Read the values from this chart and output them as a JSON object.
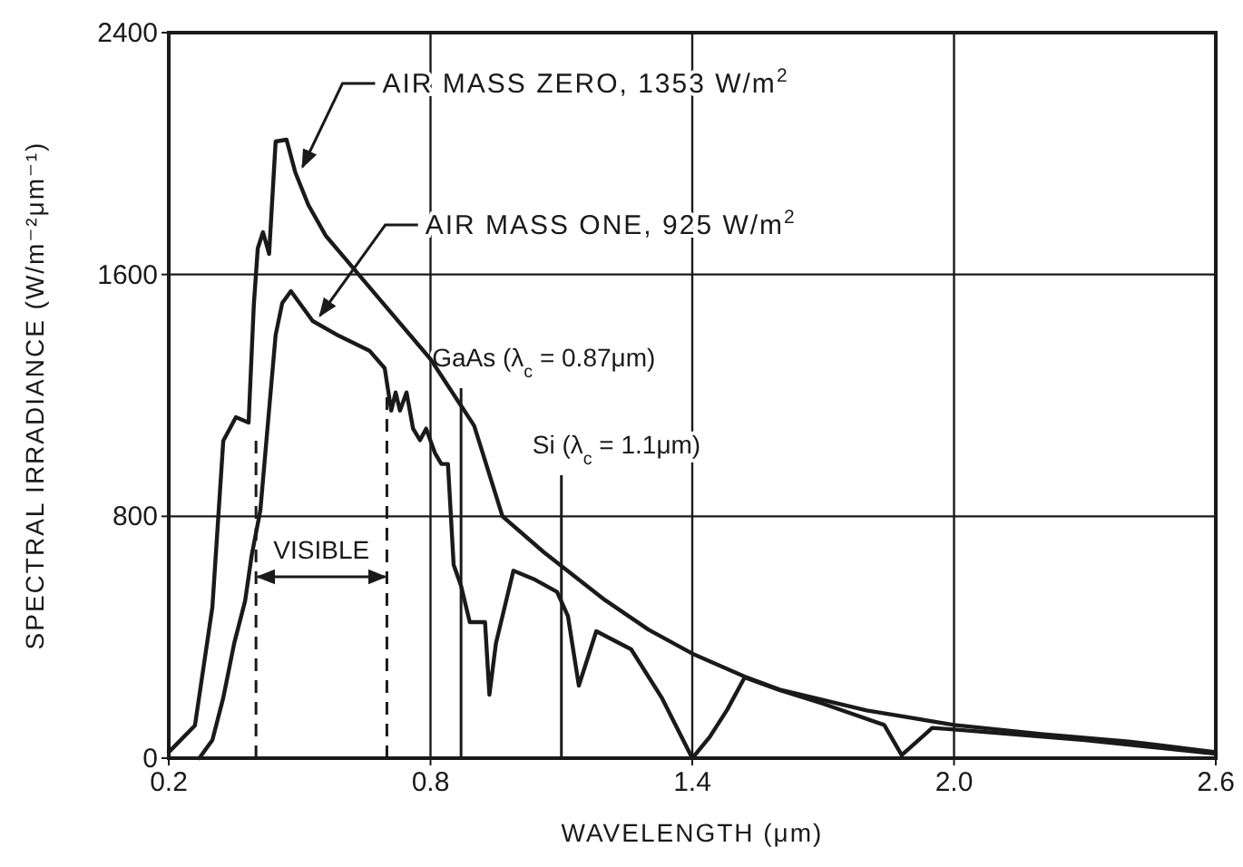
{
  "chart_data": {
    "type": "line",
    "xlabel": "WAVELENGTH (μm)",
    "ylabel": "SPECTRAL IRRADIANCE (W/m⁻²μm⁻¹)",
    "xlim": [
      0.2,
      2.6
    ],
    "xticks": [
      {
        "value": 0.2,
        "label": "0.2"
      },
      {
        "value": 0.8,
        "label": "0.8"
      },
      {
        "value": 1.4,
        "label": "1.4"
      },
      {
        "value": 2.0,
        "label": "2.0"
      },
      {
        "value": 2.6,
        "label": "2.6"
      }
    ],
    "ylim": [
      0,
      2400
    ],
    "yticks": [
      0,
      800,
      1600,
      2400
    ],
    "grid": true,
    "marker": "none",
    "line_style": "solid",
    "series": [
      {
        "color": "#1a1a1a",
        "x": [
          0.2,
          0.26,
          0.3,
          0.325,
          0.354,
          0.383,
          0.395,
          0.404,
          0.416,
          0.43,
          0.445,
          0.47,
          0.49,
          0.52,
          0.56,
          0.6,
          0.7,
          0.8,
          0.9,
          0.965,
          1.06,
          1.2,
          1.3,
          1.4,
          1.52,
          1.6,
          1.8,
          2.0,
          2.2,
          2.4,
          2.6
        ],
        "values": [
          20,
          108,
          500,
          1050,
          1128,
          1110,
          1500,
          1686,
          1740,
          1668,
          2040,
          2046,
          1938,
          1830,
          1728,
          1660,
          1490,
          1320,
          1100,
          800,
          681,
          523,
          425,
          346,
          270,
          227,
          158,
          110,
          80,
          55,
          20
        ]
      },
      {
        "color": "#1a1a1a",
        "x": [
          0.27,
          0.3,
          0.325,
          0.35,
          0.375,
          0.39,
          0.41,
          0.425,
          0.445,
          0.46,
          0.48,
          0.5,
          0.53,
          0.59,
          0.66,
          0.695,
          0.71,
          0.72,
          0.73,
          0.745,
          0.76,
          0.776,
          0.79,
          0.81,
          0.825,
          0.84,
          0.853,
          0.87,
          0.89,
          0.925,
          0.935,
          0.95,
          0.99,
          1.04,
          1.09,
          1.115,
          1.14,
          1.18,
          1.26,
          1.33,
          1.4,
          1.44,
          1.48,
          1.52,
          1.6,
          1.7,
          1.84,
          1.88,
          1.95,
          2.0,
          2.3,
          2.6
        ],
        "values": [
          0,
          60,
          200,
          380,
          520,
          670,
          820,
          1070,
          1400,
          1505,
          1545,
          1505,
          1446,
          1397,
          1348,
          1290,
          1150,
          1210,
          1150,
          1210,
          1090,
          1052,
          1090,
          1010,
          973,
          973,
          640,
          570,
          450,
          450,
          210,
          380,
          620,
          590,
          550,
          470,
          240,
          420,
          360,
          200,
          0,
          70,
          160,
          267,
          225,
          180,
          110,
          10,
          100,
          95,
          60,
          15
        ]
      }
    ],
    "annotations": [
      {
        "text": "AIR MASS ZERO, 1353 W/m$^{2}$",
        "x": 0.49,
        "y": 1938
      },
      {
        "text": "AIR MASS ONE, 925 W/m$^{2}$",
        "x": 0.53,
        "y": 1446
      },
      "VISIBLE"
    ],
    "ref_lines": [
      {
        "axis": "x",
        "value": 0.87,
        "label": "GaAs (λ$_{c}$ = 0.87μm)"
      },
      {
        "axis": "x",
        "value": 1.1,
        "label": "Si (λ$_{c}$ = 1.1μm)"
      },
      {
        "axis": "x",
        "value": 0.4,
        "line_style": "dashed"
      },
      {
        "axis": "x",
        "value": 0.7,
        "line_style": "dashed"
      }
    ]
  }
}
